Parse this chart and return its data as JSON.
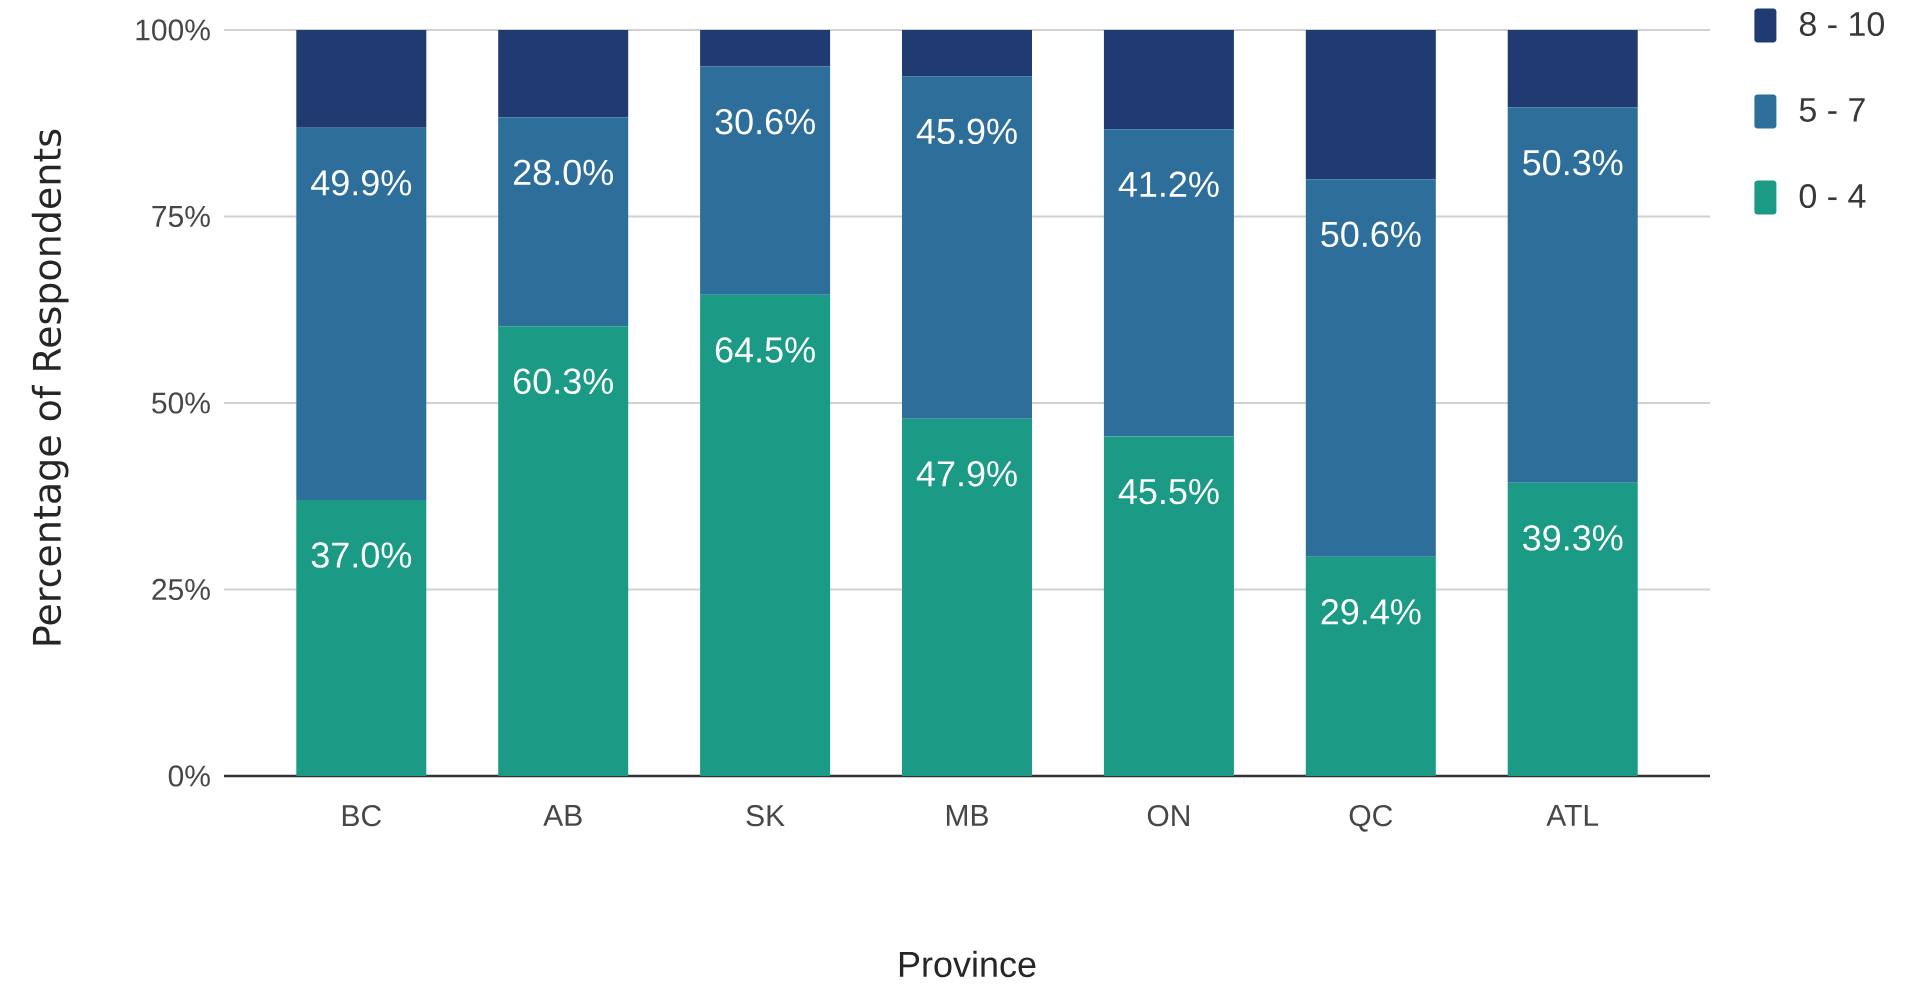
{
  "chart_data": {
    "type": "bar",
    "stacked": true,
    "xlabel": "Province",
    "ylabel": "Percentage of Respondents",
    "categories": [
      "BC",
      "AB",
      "SK",
      "MB",
      "ON",
      "QC",
      "ATL"
    ],
    "series": [
      {
        "name": "0 - 4",
        "color": "#1b9a85",
        "values": [
          37.0,
          60.3,
          64.5,
          47.9,
          45.5,
          29.4,
          39.3
        ],
        "value_labels": [
          "37.0%",
          "60.3%",
          "64.5%",
          "47.9%",
          "45.5%",
          "29.4%",
          "39.3%"
        ]
      },
      {
        "name": "5 - 7",
        "color": "#2d6e9a",
        "values": [
          49.9,
          28.0,
          30.6,
          45.9,
          41.2,
          50.6,
          50.3
        ],
        "value_labels": [
          "49.9%",
          "28.0%",
          "30.6%",
          "45.9%",
          "41.2%",
          "50.6%",
          "50.3%"
        ]
      },
      {
        "name": "8 - 10",
        "color": "#1f3b72",
        "values": [
          13.1,
          11.7,
          4.9,
          6.2,
          13.3,
          20.0,
          10.4
        ]
      }
    ],
    "ylim": [
      0,
      100
    ],
    "yticks": [
      {
        "value": 0,
        "label": "0%"
      },
      {
        "value": 25,
        "label": "25%"
      },
      {
        "value": 50,
        "label": "50%"
      },
      {
        "value": 75,
        "label": "75%"
      },
      {
        "value": 100,
        "label": "100%"
      }
    ],
    "grid": "y",
    "legend": "top right"
  }
}
